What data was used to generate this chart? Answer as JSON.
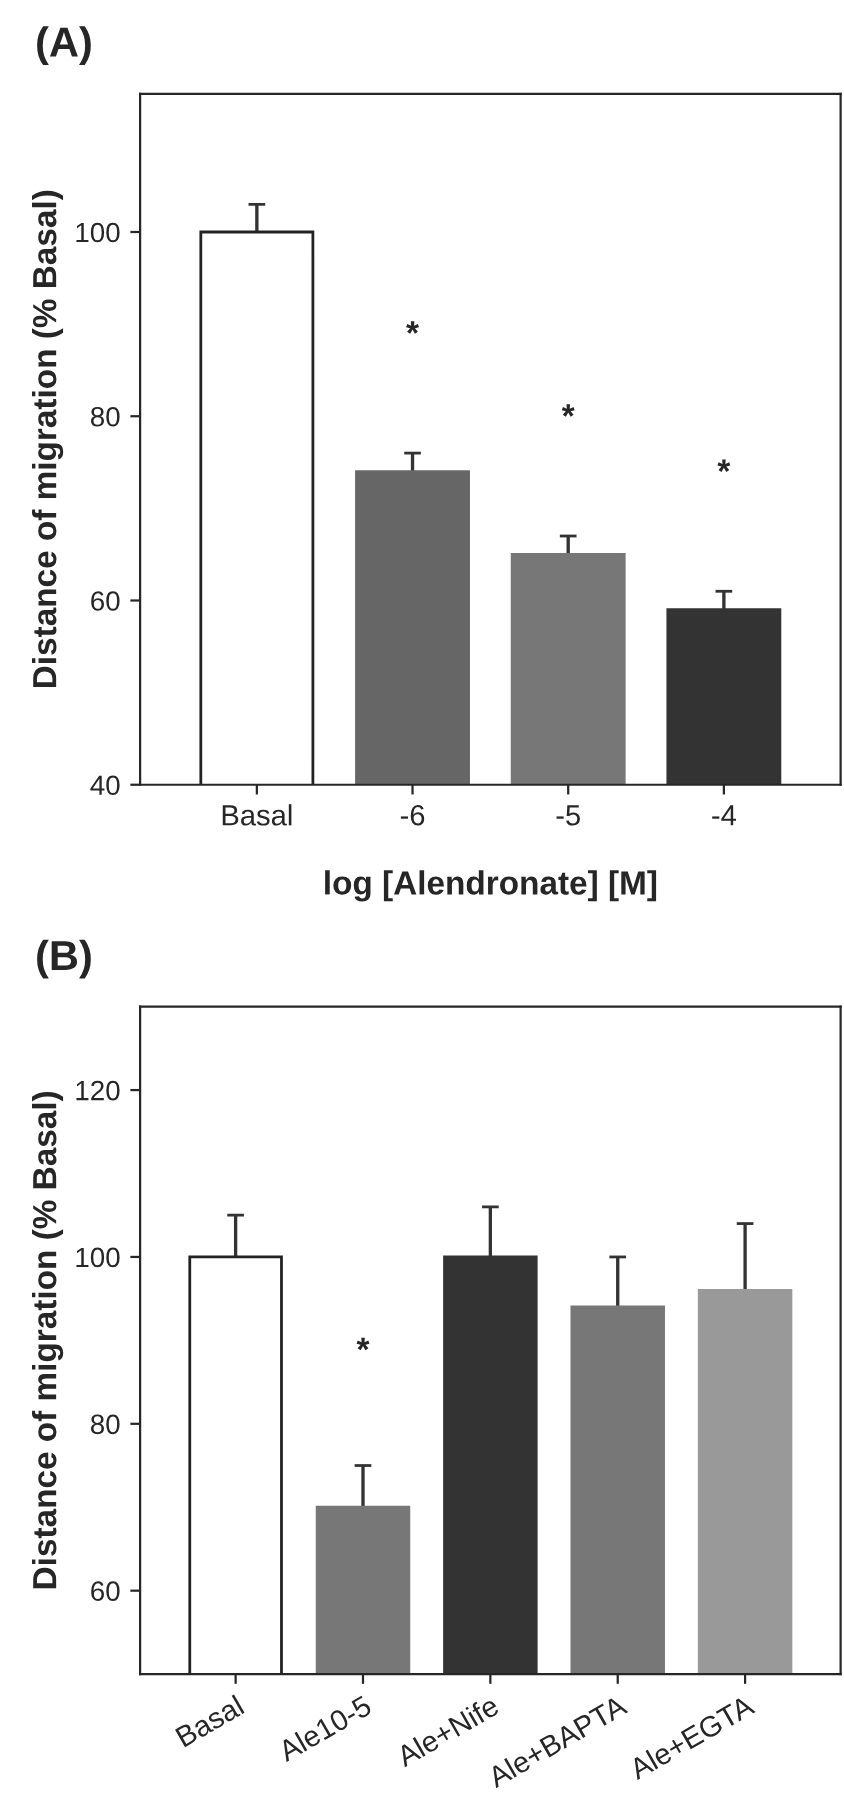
{
  "chart_data": [
    {
      "type": "bar",
      "title": "(A)",
      "ylabel": "Distance of migration (% Basal)",
      "xlabel": "log [Alendronate] [M]",
      "categories": [
        "Basal",
        "-6",
        "-5",
        "-4"
      ],
      "values": [
        100,
        74,
        65,
        59
      ],
      "errors": [
        3,
        2,
        2,
        2
      ],
      "colors": [
        "#ffffff",
        "#666666",
        "#777777",
        "#333333"
      ],
      "ylim": [
        40,
        115
      ],
      "yticks": [
        40,
        60,
        80,
        100
      ],
      "annotations": [
        "*",
        "*",
        "*"
      ]
    },
    {
      "type": "bar",
      "title": "(B)",
      "ylabel": "Distance of migration (% Basal)",
      "categories": [
        "Basal",
        "Ale10-5",
        "Ale+Nife",
        "Ale+BAPTA",
        "Ale+EGTA"
      ],
      "values": [
        100,
        70,
        100,
        94,
        96
      ],
      "errors": [
        5,
        5,
        6,
        6,
        8
      ],
      "colors": [
        "#ffffff",
        "#777777",
        "#333333",
        "#777777",
        "#999999"
      ],
      "ylim": [
        50,
        130
      ],
      "yticks": [
        60,
        80,
        100,
        120
      ],
      "annotations": [
        "*"
      ]
    }
  ]
}
